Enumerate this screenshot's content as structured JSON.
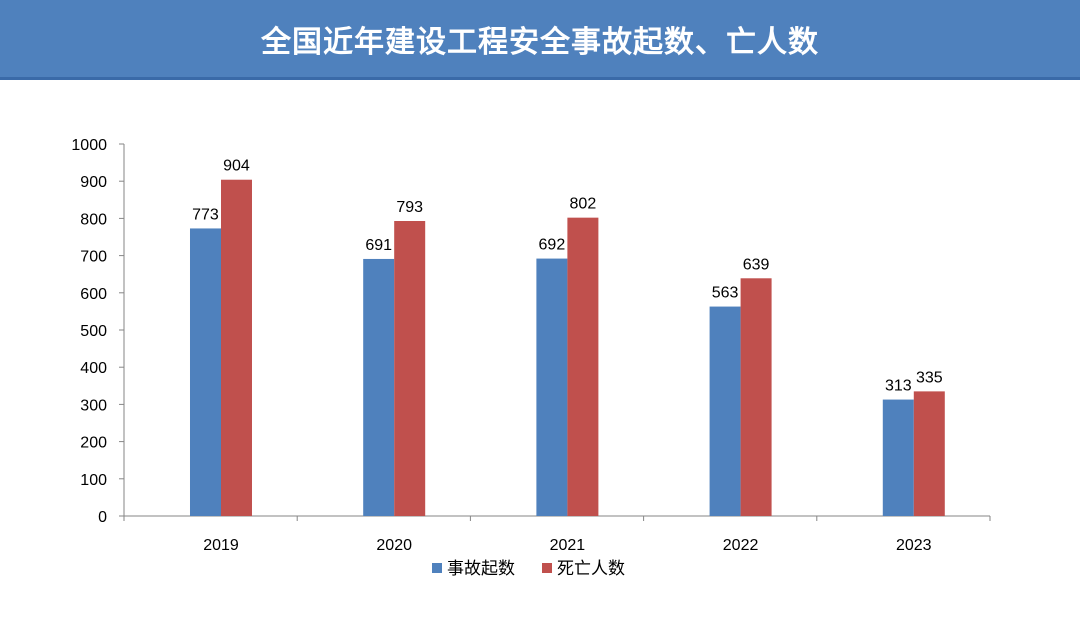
{
  "header": {
    "title": "全国近年建设工程安全事故起数、亡人数"
  },
  "chart_data": {
    "type": "bar",
    "title": "全国近年建设工程安全事故起数、亡人数",
    "categories": [
      "2019",
      "2020",
      "2021",
      "2022",
      "2023"
    ],
    "series": [
      {
        "name": "事故起数",
        "color": "#4f81bd",
        "values": [
          773,
          691,
          692,
          563,
          313
        ]
      },
      {
        "name": "死亡人数",
        "color": "#c0504d",
        "values": [
          904,
          793,
          802,
          639,
          335
        ]
      }
    ],
    "ylim": [
      0,
      1000
    ],
    "yticks": [
      0,
      100,
      200,
      300,
      400,
      500,
      600,
      700,
      800,
      900,
      1000
    ],
    "grid": false,
    "legend": "bottom",
    "xlabel": "",
    "ylabel": ""
  }
}
